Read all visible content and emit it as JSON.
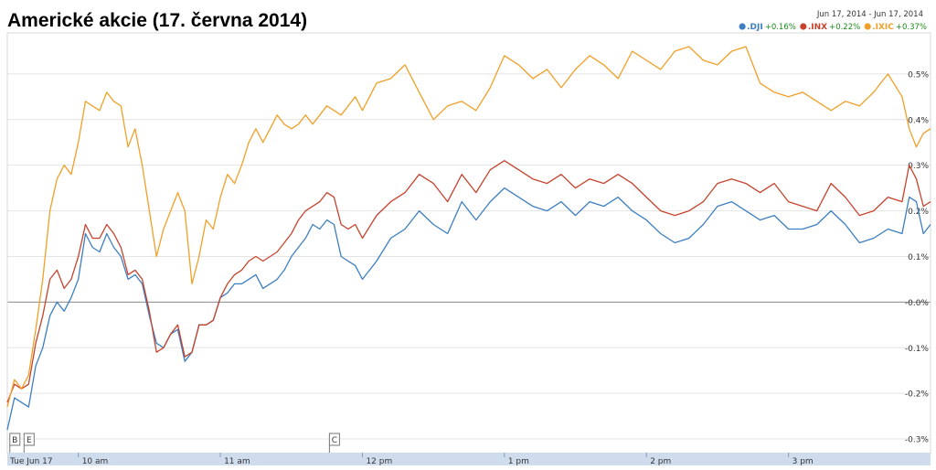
{
  "chart_data": {
    "type": "line",
    "title": "Americké akcie (17. června 2014)",
    "date_range": "Jun 17, 2014  -  Jun 17, 2014",
    "ylim": [
      -0.33,
      0.59
    ],
    "xlim": [
      9.5,
      16.0
    ],
    "y_ticks": [
      {
        "value": 0.5,
        "label": "0.5%"
      },
      {
        "value": 0.4,
        "label": "0.4%"
      },
      {
        "value": 0.3,
        "label": "0.3%"
      },
      {
        "value": 0.2,
        "label": "0.2%"
      },
      {
        "value": 0.1,
        "label": "0.1%"
      },
      {
        "value": 0.0,
        "label": "-0.0%"
      },
      {
        "value": -0.1,
        "label": "-0.1%"
      },
      {
        "value": -0.2,
        "label": "-0.2%"
      },
      {
        "value": -0.3,
        "label": "-0.3%"
      }
    ],
    "x_ticks": [
      {
        "value": 9.5,
        "label": "Tue Jun 17"
      },
      {
        "value": 10.0,
        "label": "10 am"
      },
      {
        "value": 11.0,
        "label": "11 am"
      },
      {
        "value": 12.0,
        "label": "12 pm"
      },
      {
        "value": 13.0,
        "label": "1 pm"
      },
      {
        "value": 14.0,
        "label": "2 pm"
      },
      {
        "value": 15.0,
        "label": "3 pm"
      }
    ],
    "markers": [
      {
        "label": "B",
        "x": 9.55
      },
      {
        "label": "E",
        "x": 9.65
      },
      {
        "label": "C",
        "x": 11.8
      }
    ],
    "x": [
      9.5,
      9.55,
      9.6,
      9.65,
      9.7,
      9.75,
      9.8,
      9.85,
      9.9,
      9.95,
      10.0,
      10.05,
      10.1,
      10.15,
      10.2,
      10.25,
      10.3,
      10.35,
      10.4,
      10.45,
      10.5,
      10.55,
      10.6,
      10.65,
      10.7,
      10.75,
      10.8,
      10.85,
      10.9,
      10.95,
      11.0,
      11.05,
      11.1,
      11.15,
      11.2,
      11.25,
      11.3,
      11.35,
      11.4,
      11.45,
      11.5,
      11.55,
      11.6,
      11.65,
      11.7,
      11.75,
      11.8,
      11.85,
      11.9,
      11.95,
      12.0,
      12.1,
      12.2,
      12.3,
      12.4,
      12.5,
      12.6,
      12.7,
      12.8,
      12.9,
      13.0,
      13.1,
      13.2,
      13.3,
      13.4,
      13.5,
      13.6,
      13.7,
      13.8,
      13.9,
      14.0,
      14.1,
      14.2,
      14.3,
      14.4,
      14.5,
      14.6,
      14.7,
      14.8,
      14.9,
      15.0,
      15.1,
      15.2,
      15.3,
      15.4,
      15.5,
      15.6,
      15.7,
      15.8,
      15.85,
      15.9,
      15.95,
      16.0
    ],
    "series": [
      {
        "name": ".DJI",
        "change": "+0.16%",
        "color": "#3d7fc1",
        "values": [
          -0.28,
          -0.21,
          -0.22,
          -0.23,
          -0.14,
          -0.1,
          -0.03,
          0.0,
          -0.02,
          0.01,
          0.05,
          0.15,
          0.12,
          0.11,
          0.15,
          0.12,
          0.1,
          0.05,
          0.06,
          0.04,
          -0.03,
          -0.09,
          -0.1,
          -0.07,
          -0.06,
          -0.13,
          -0.11,
          -0.05,
          -0.05,
          -0.04,
          0.01,
          0.02,
          0.04,
          0.04,
          0.05,
          0.06,
          0.03,
          0.04,
          0.05,
          0.07,
          0.1,
          0.12,
          0.14,
          0.17,
          0.16,
          0.18,
          0.17,
          0.1,
          0.09,
          0.08,
          0.05,
          0.09,
          0.14,
          0.16,
          0.2,
          0.17,
          0.15,
          0.22,
          0.18,
          0.22,
          0.25,
          0.23,
          0.21,
          0.2,
          0.22,
          0.19,
          0.22,
          0.21,
          0.23,
          0.2,
          0.18,
          0.15,
          0.13,
          0.14,
          0.17,
          0.21,
          0.22,
          0.2,
          0.18,
          0.19,
          0.16,
          0.16,
          0.17,
          0.2,
          0.17,
          0.13,
          0.14,
          0.16,
          0.15,
          0.23,
          0.22,
          0.15,
          0.17
        ]
      },
      {
        "name": ".INX",
        "change": "+0.22%",
        "color": "#c5432d",
        "values": [
          -0.22,
          -0.18,
          -0.19,
          -0.18,
          -0.09,
          -0.03,
          0.05,
          0.07,
          0.03,
          0.05,
          0.1,
          0.17,
          0.14,
          0.14,
          0.17,
          0.15,
          0.12,
          0.06,
          0.07,
          0.05,
          -0.02,
          -0.11,
          -0.1,
          -0.07,
          -0.05,
          -0.12,
          -0.11,
          -0.05,
          -0.05,
          -0.04,
          0.01,
          0.04,
          0.06,
          0.07,
          0.09,
          0.1,
          0.09,
          0.1,
          0.11,
          0.13,
          0.15,
          0.18,
          0.2,
          0.21,
          0.22,
          0.24,
          0.23,
          0.17,
          0.16,
          0.17,
          0.14,
          0.19,
          0.22,
          0.24,
          0.28,
          0.26,
          0.22,
          0.28,
          0.24,
          0.29,
          0.31,
          0.29,
          0.27,
          0.26,
          0.28,
          0.25,
          0.27,
          0.26,
          0.28,
          0.26,
          0.23,
          0.2,
          0.19,
          0.2,
          0.22,
          0.26,
          0.27,
          0.26,
          0.24,
          0.26,
          0.22,
          0.21,
          0.2,
          0.26,
          0.23,
          0.19,
          0.2,
          0.23,
          0.22,
          0.3,
          0.27,
          0.21,
          0.22
        ]
      },
      {
        "name": ".IXIC",
        "change": "+0.37%",
        "color": "#f0a028",
        "values": [
          -0.23,
          -0.17,
          -0.19,
          -0.16,
          -0.06,
          0.05,
          0.2,
          0.27,
          0.3,
          0.28,
          0.35,
          0.44,
          0.43,
          0.42,
          0.46,
          0.44,
          0.43,
          0.34,
          0.38,
          0.3,
          0.2,
          0.1,
          0.16,
          0.2,
          0.24,
          0.2,
          0.04,
          0.1,
          0.18,
          0.16,
          0.23,
          0.28,
          0.26,
          0.3,
          0.35,
          0.38,
          0.35,
          0.38,
          0.41,
          0.39,
          0.38,
          0.39,
          0.41,
          0.39,
          0.41,
          0.43,
          0.42,
          0.41,
          0.43,
          0.45,
          0.42,
          0.48,
          0.49,
          0.52,
          0.46,
          0.4,
          0.43,
          0.44,
          0.42,
          0.47,
          0.54,
          0.52,
          0.49,
          0.51,
          0.47,
          0.51,
          0.54,
          0.52,
          0.49,
          0.55,
          0.53,
          0.51,
          0.55,
          0.56,
          0.53,
          0.52,
          0.55,
          0.56,
          0.48,
          0.46,
          0.45,
          0.46,
          0.44,
          0.42,
          0.44,
          0.43,
          0.46,
          0.5,
          0.45,
          0.38,
          0.34,
          0.37,
          0.38
        ]
      }
    ]
  }
}
